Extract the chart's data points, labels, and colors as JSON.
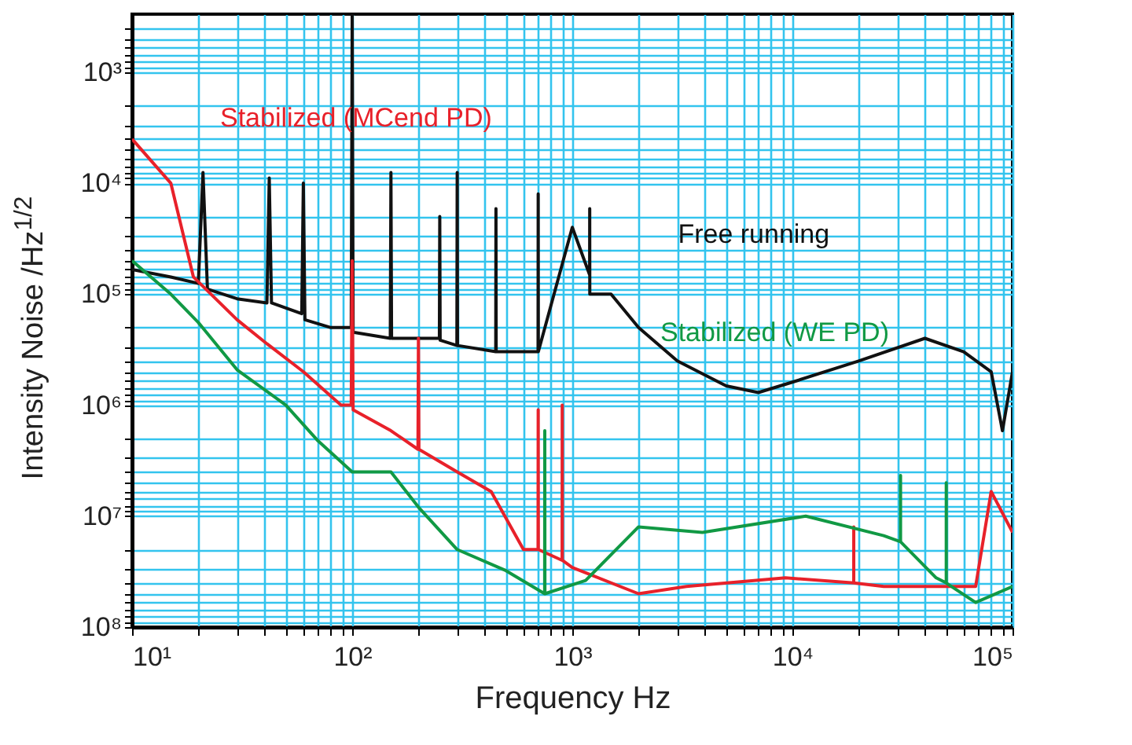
{
  "chart_data": {
    "type": "line",
    "xlabel": "Frequency Hz",
    "ylabel": "Intensity Noise /Hz$^{1/2}$",
    "log": "xy",
    "grid": true,
    "legend": false,
    "xlim": [
      10,
      100000
    ],
    "ylim": [
      100000000,
      300
    ],
    "xticks": [
      {
        "value": 10,
        "label": "10¹"
      },
      {
        "value": 20,
        "label": null
      },
      {
        "value": 30,
        "label": null
      },
      {
        "value": 40,
        "label": null
      },
      {
        "value": 50,
        "label": null
      },
      {
        "value": 60,
        "label": null
      },
      {
        "value": 70,
        "label": null
      },
      {
        "value": 80,
        "label": null
      },
      {
        "value": 90,
        "label": null
      },
      {
        "value": 100,
        "label": "10²"
      },
      {
        "value": 200,
        "label": null
      },
      {
        "value": 300,
        "label": null
      },
      {
        "value": 400,
        "label": null
      },
      {
        "value": 500,
        "label": null
      },
      {
        "value": 600,
        "label": null
      },
      {
        "value": 700,
        "label": null
      },
      {
        "value": 800,
        "label": null
      },
      {
        "value": 900,
        "label": null
      },
      {
        "value": 1000,
        "label": "10³"
      },
      {
        "value": 2000,
        "label": null
      },
      {
        "value": 3000,
        "label": null
      },
      {
        "value": 4000,
        "label": null
      },
      {
        "value": 5000,
        "label": null
      },
      {
        "value": 6000,
        "label": null
      },
      {
        "value": 7000,
        "label": null
      },
      {
        "value": 8000,
        "label": null
      },
      {
        "value": 9000,
        "label": null
      },
      {
        "value": 10000,
        "label": "10⁴"
      },
      {
        "value": 20000,
        "label": null
      },
      {
        "value": 30000,
        "label": null
      },
      {
        "value": 40000,
        "label": null
      },
      {
        "value": 50000,
        "label": null
      },
      {
        "value": 60000,
        "label": null
      },
      {
        "value": 70000,
        "label": null
      },
      {
        "value": 80000,
        "label": null
      },
      {
        "value": 90000,
        "label": null
      },
      {
        "value": 100000,
        "label": "10⁵"
      }
    ],
    "yticks": [
      {
        "value": 400,
        "label": null
      },
      {
        "value": 500,
        "label": null
      },
      {
        "value": 600,
        "label": null
      },
      {
        "value": 700,
        "label": null
      },
      {
        "value": 800,
        "label": null
      },
      {
        "value": 900,
        "label": null
      },
      {
        "value": 1000,
        "label": "10³"
      },
      {
        "value": 2000,
        "label": null
      },
      {
        "value": 3000,
        "label": null
      },
      {
        "value": 4000,
        "label": null
      },
      {
        "value": 5000,
        "label": null
      },
      {
        "value": 6000,
        "label": null
      },
      {
        "value": 7000,
        "label": null
      },
      {
        "value": 8000,
        "label": null
      },
      {
        "value": 9000,
        "label": null
      },
      {
        "value": 10000,
        "label": "10⁴"
      },
      {
        "value": 20000,
        "label": null
      },
      {
        "value": 30000,
        "label": null
      },
      {
        "value": 40000,
        "label": null
      },
      {
        "value": 50000,
        "label": null
      },
      {
        "value": 60000,
        "label": null
      },
      {
        "value": 70000,
        "label": null
      },
      {
        "value": 80000,
        "label": null
      },
      {
        "value": 90000,
        "label": null
      },
      {
        "value": 100000,
        "label": "10⁵"
      },
      {
        "value": 200000,
        "label": null
      },
      {
        "value": 300000,
        "label": null
      },
      {
        "value": 400000,
        "label": null
      },
      {
        "value": 500000,
        "label": null
      },
      {
        "value": 600000,
        "label": null
      },
      {
        "value": 700000,
        "label": null
      },
      {
        "value": 800000,
        "label": null
      },
      {
        "value": 900000,
        "label": null
      },
      {
        "value": 1000000,
        "label": "10⁶"
      },
      {
        "value": 2000000,
        "label": null
      },
      {
        "value": 3000000,
        "label": null
      },
      {
        "value": 4000000,
        "label": null
      },
      {
        "value": 5000000,
        "label": null
      },
      {
        "value": 6000000,
        "label": null
      },
      {
        "value": 7000000,
        "label": null
      },
      {
        "value": 8000000,
        "label": null
      },
      {
        "value": 9000000,
        "label": null
      },
      {
        "value": 10000000,
        "label": "10⁷"
      },
      {
        "value": 20000000,
        "label": null
      },
      {
        "value": 30000000,
        "label": null
      },
      {
        "value": 40000000,
        "label": null
      },
      {
        "value": 50000000,
        "label": null
      },
      {
        "value": 60000000,
        "label": null
      },
      {
        "value": 70000000,
        "label": null
      },
      {
        "value": 80000000,
        "label": null
      },
      {
        "value": 90000000,
        "label": null
      },
      {
        "value": 100000000,
        "label": "10⁸"
      }
    ],
    "series": [
      {
        "name": "Free running",
        "color": "#111111",
        "x": [
          10,
          15,
          20,
          21,
          22,
          30,
          41,
          42,
          43,
          59,
          60,
          61,
          80,
          99,
          100,
          101,
          149,
          150,
          151,
          249,
          250,
          251,
          299,
          300,
          301,
          449,
          450,
          451,
          699,
          700,
          701,
          1000,
          1199,
          1200,
          1201,
          1500,
          2000,
          3000,
          5000,
          7000,
          10000,
          20000,
          40000,
          60000,
          80000,
          90000,
          100000
        ],
        "values": [
          60000,
          70000,
          80000,
          8000,
          90000,
          110000,
          120000,
          9000,
          120000,
          150000,
          10000,
          170000,
          200000,
          200000,
          300,
          220000,
          250000,
          8000,
          250000,
          250000,
          20000,
          260000,
          290000,
          8000,
          290000,
          330000,
          17000,
          330000,
          330000,
          12500,
          330000,
          25000,
          67000,
          17000,
          100000,
          100000,
          200000,
          400000,
          670000,
          770000,
          620000,
          400000,
          250000,
          330000,
          500000,
          1700000,
          500000
        ]
      },
      {
        "name": "Stabilized (MCend PD)",
        "color": "#e8212a",
        "x": [
          10,
          15,
          19,
          30,
          41,
          60,
          89,
          99,
          100,
          101,
          150,
          199,
          200,
          201,
          300,
          428,
          600,
          699,
          700,
          701,
          899,
          900,
          901,
          1000,
          2000,
          3300,
          9300,
          18999,
          19000,
          19001,
          26000,
          68000,
          80000,
          100000
        ],
        "values": [
          4000,
          10000,
          70000,
          170000,
          280000,
          500000,
          1000000,
          1000000,
          50000,
          1100000,
          1700000,
          2500000,
          250000,
          2500000,
          4000000,
          6000000,
          20000000,
          20000000,
          1100000,
          20000000,
          25000000,
          1000000,
          25000000,
          29000000,
          50000000,
          43000000,
          36000000,
          40000000,
          12500000,
          40000000,
          43000000,
          43000000,
          6000000,
          14000000
        ]
      },
      {
        "name": "Stabilized (WE PD)",
        "color": "#119944",
        "x": [
          10,
          15,
          20,
          30,
          50,
          70,
          100,
          150,
          200,
          300,
          500,
          749,
          750,
          751,
          1150,
          2000,
          3900,
          11500,
          26000,
          30999,
          31000,
          31001,
          45000,
          49999,
          50000,
          50001,
          68000,
          100000
        ],
        "values": [
          50000,
          100000,
          180000,
          480000,
          1000000,
          2100000,
          4000000,
          4000000,
          8300000,
          20000000,
          31000000,
          50000000,
          1700000,
          50000000,
          38000000,
          12500000,
          14000000,
          10000000,
          15000000,
          17000000,
          4300000,
          17000000,
          36000000,
          40000000,
          5000000,
          40000000,
          60000000,
          43000000
        ]
      }
    ]
  }
}
